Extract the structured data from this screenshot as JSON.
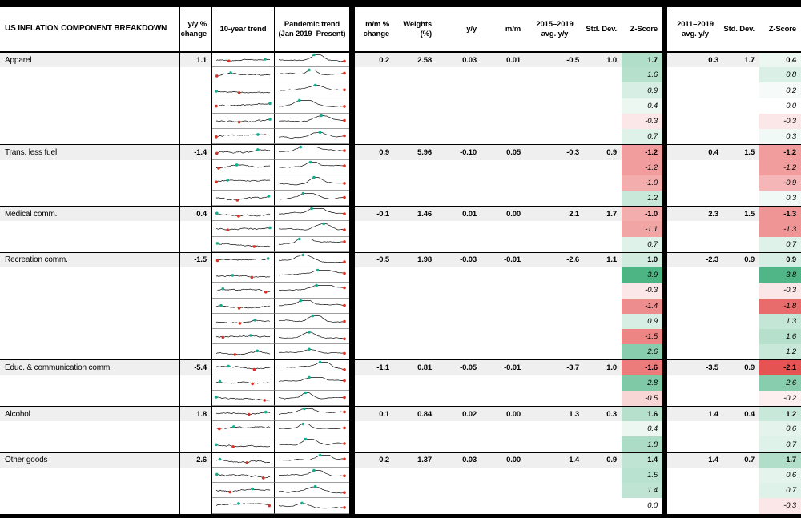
{
  "header": {
    "title": "US INFLATION COMPONENT BREAKDOWN",
    "yy_change": "y/y %\nchange",
    "trend_10yr": "10-year trend",
    "pandemic_trend": "Pandemic trend\n(Jan 2019–Present)",
    "mm_change": "m/m %\nchange",
    "weights": "Weights\n(%)",
    "yy": "y/y",
    "mm": "m/m",
    "avg_2015_2019": "2015–2019\navg. y/y",
    "std_dev_1": "Std. Dev.",
    "z_score_1": "Z-Score",
    "avg_2011_2019": "2011–2019\navg. y/y",
    "std_dev_2": "Std. Dev.",
    "z_score_2": "Z-Score"
  },
  "style": {
    "positive_z": "#3fae7a",
    "negative_z": "#e23b3b",
    "group_row_bg": "#efefef",
    "spark_dot_teal": "#13ae8e",
    "spark_dot_red": "#d93025"
  },
  "chart_data": {
    "type": "table",
    "title": "US INFLATION COMPONENT BREAKDOWN",
    "columns": [
      "Component",
      "y/y % change",
      "10-year trend",
      "Pandemic trend (Jan 2019–Present)",
      "m/m % change",
      "Weights (%)",
      "y/y",
      "m/m",
      "2015–2019 avg. y/y",
      "Std. Dev.",
      "Z-Score",
      "2011–2019 avg. y/y",
      "Std. Dev.",
      "Z-Score"
    ],
    "groups": [
      {
        "name": "Apparel",
        "yy_change": "1.1",
        "mm_change": "0.2",
        "weights": "2.58",
        "yy_contrib": "0.03",
        "mm_contrib": "0.01",
        "avg_2015_2019": "-0.5",
        "std_2015_2019": "1.0",
        "z_2015_2019": "1.7",
        "avg_2011_2019": "0.3",
        "std_2011_2019": "1.7",
        "z_2011_2019": "0.4",
        "subs": [
          {
            "z_2015_2019": "1.6",
            "z_2011_2019": "0.8"
          },
          {
            "z_2015_2019": "0.9",
            "z_2011_2019": "0.2"
          },
          {
            "z_2015_2019": "0.4",
            "z_2011_2019": "0.0"
          },
          {
            "z_2015_2019": "-0.3",
            "z_2011_2019": "-0.3"
          },
          {
            "z_2015_2019": "0.7",
            "z_2011_2019": "0.3"
          }
        ]
      },
      {
        "name": "Trans. less fuel",
        "yy_change": "-1.4",
        "mm_change": "0.9",
        "weights": "5.96",
        "yy_contrib": "-0.10",
        "mm_contrib": "0.05",
        "avg_2015_2019": "-0.3",
        "std_2015_2019": "0.9",
        "z_2015_2019": "-1.2",
        "avg_2011_2019": "0.4",
        "std_2011_2019": "1.5",
        "z_2011_2019": "-1.2",
        "subs": [
          {
            "z_2015_2019": "-1.2",
            "z_2011_2019": "-1.2"
          },
          {
            "z_2015_2019": "-1.0",
            "z_2011_2019": "-0.9"
          },
          {
            "z_2015_2019": "1.2",
            "z_2011_2019": "0.3"
          }
        ]
      },
      {
        "name": "Medical comm.",
        "yy_change": "0.4",
        "mm_change": "-0.1",
        "weights": "1.46",
        "yy_contrib": "0.01",
        "mm_contrib": "0.00",
        "avg_2015_2019": "2.1",
        "std_2015_2019": "1.7",
        "z_2015_2019": "-1.0",
        "avg_2011_2019": "2.3",
        "std_2011_2019": "1.5",
        "z_2011_2019": "-1.3",
        "subs": [
          {
            "z_2015_2019": "-1.1",
            "z_2011_2019": "-1.3"
          },
          {
            "z_2015_2019": "0.7",
            "z_2011_2019": "0.7"
          }
        ]
      },
      {
        "name": "Recreation comm.",
        "yy_change": "-1.5",
        "mm_change": "-0.5",
        "weights": "1.98",
        "yy_contrib": "-0.03",
        "mm_contrib": "-0.01",
        "avg_2015_2019": "-2.6",
        "std_2015_2019": "1.1",
        "z_2015_2019": "1.0",
        "avg_2011_2019": "-2.3",
        "std_2011_2019": "0.9",
        "z_2011_2019": "0.9",
        "subs": [
          {
            "z_2015_2019": "3.9",
            "z_2011_2019": "3.8"
          },
          {
            "z_2015_2019": "-0.3",
            "z_2011_2019": "-0.3"
          },
          {
            "z_2015_2019": "-1.4",
            "z_2011_2019": "-1.8"
          },
          {
            "z_2015_2019": "0.9",
            "z_2011_2019": "1.3"
          },
          {
            "z_2015_2019": "-1.5",
            "z_2011_2019": "1.6"
          },
          {
            "z_2015_2019": "2.6",
            "z_2011_2019": "1.2"
          }
        ]
      },
      {
        "name": "Educ. & communication comm.",
        "yy_change": "-5.4",
        "mm_change": "-1.1",
        "weights": "0.81",
        "yy_contrib": "-0.05",
        "mm_contrib": "-0.01",
        "avg_2015_2019": "-3.7",
        "std_2015_2019": "1.0",
        "z_2015_2019": "-1.6",
        "avg_2011_2019": "-3.5",
        "std_2011_2019": "0.9",
        "z_2011_2019": "-2.1",
        "subs": [
          {
            "z_2015_2019": "2.8",
            "z_2011_2019": "2.6"
          },
          {
            "z_2015_2019": "-0.5",
            "z_2011_2019": "-0.2"
          }
        ]
      },
      {
        "name": "Alcohol",
        "yy_change": "1.8",
        "mm_change": "0.1",
        "weights": "0.84",
        "yy_contrib": "0.02",
        "mm_contrib": "0.00",
        "avg_2015_2019": "1.3",
        "std_2015_2019": "0.3",
        "z_2015_2019": "1.6",
        "avg_2011_2019": "1.4",
        "std_2011_2019": "0.4",
        "z_2011_2019": "1.2",
        "subs": [
          {
            "z_2015_2019": "0.4",
            "z_2011_2019": "0.6"
          },
          {
            "z_2015_2019": "1.8",
            "z_2011_2019": "0.7"
          }
        ]
      },
      {
        "name": "Other goods",
        "yy_change": "2.6",
        "mm_change": "0.2",
        "weights": "1.37",
        "yy_contrib": "0.03",
        "mm_contrib": "0.00",
        "avg_2015_2019": "1.4",
        "std_2015_2019": "0.9",
        "z_2015_2019": "1.4",
        "avg_2011_2019": "1.4",
        "std_2011_2019": "0.7",
        "z_2011_2019": "1.7",
        "subs": [
          {
            "z_2015_2019": "1.5",
            "z_2011_2019": "0.6"
          },
          {
            "z_2015_2019": "1.4",
            "z_2011_2019": "0.7"
          },
          {
            "z_2015_2019": "0.0",
            "z_2011_2019": "-0.3"
          }
        ]
      }
    ]
  }
}
